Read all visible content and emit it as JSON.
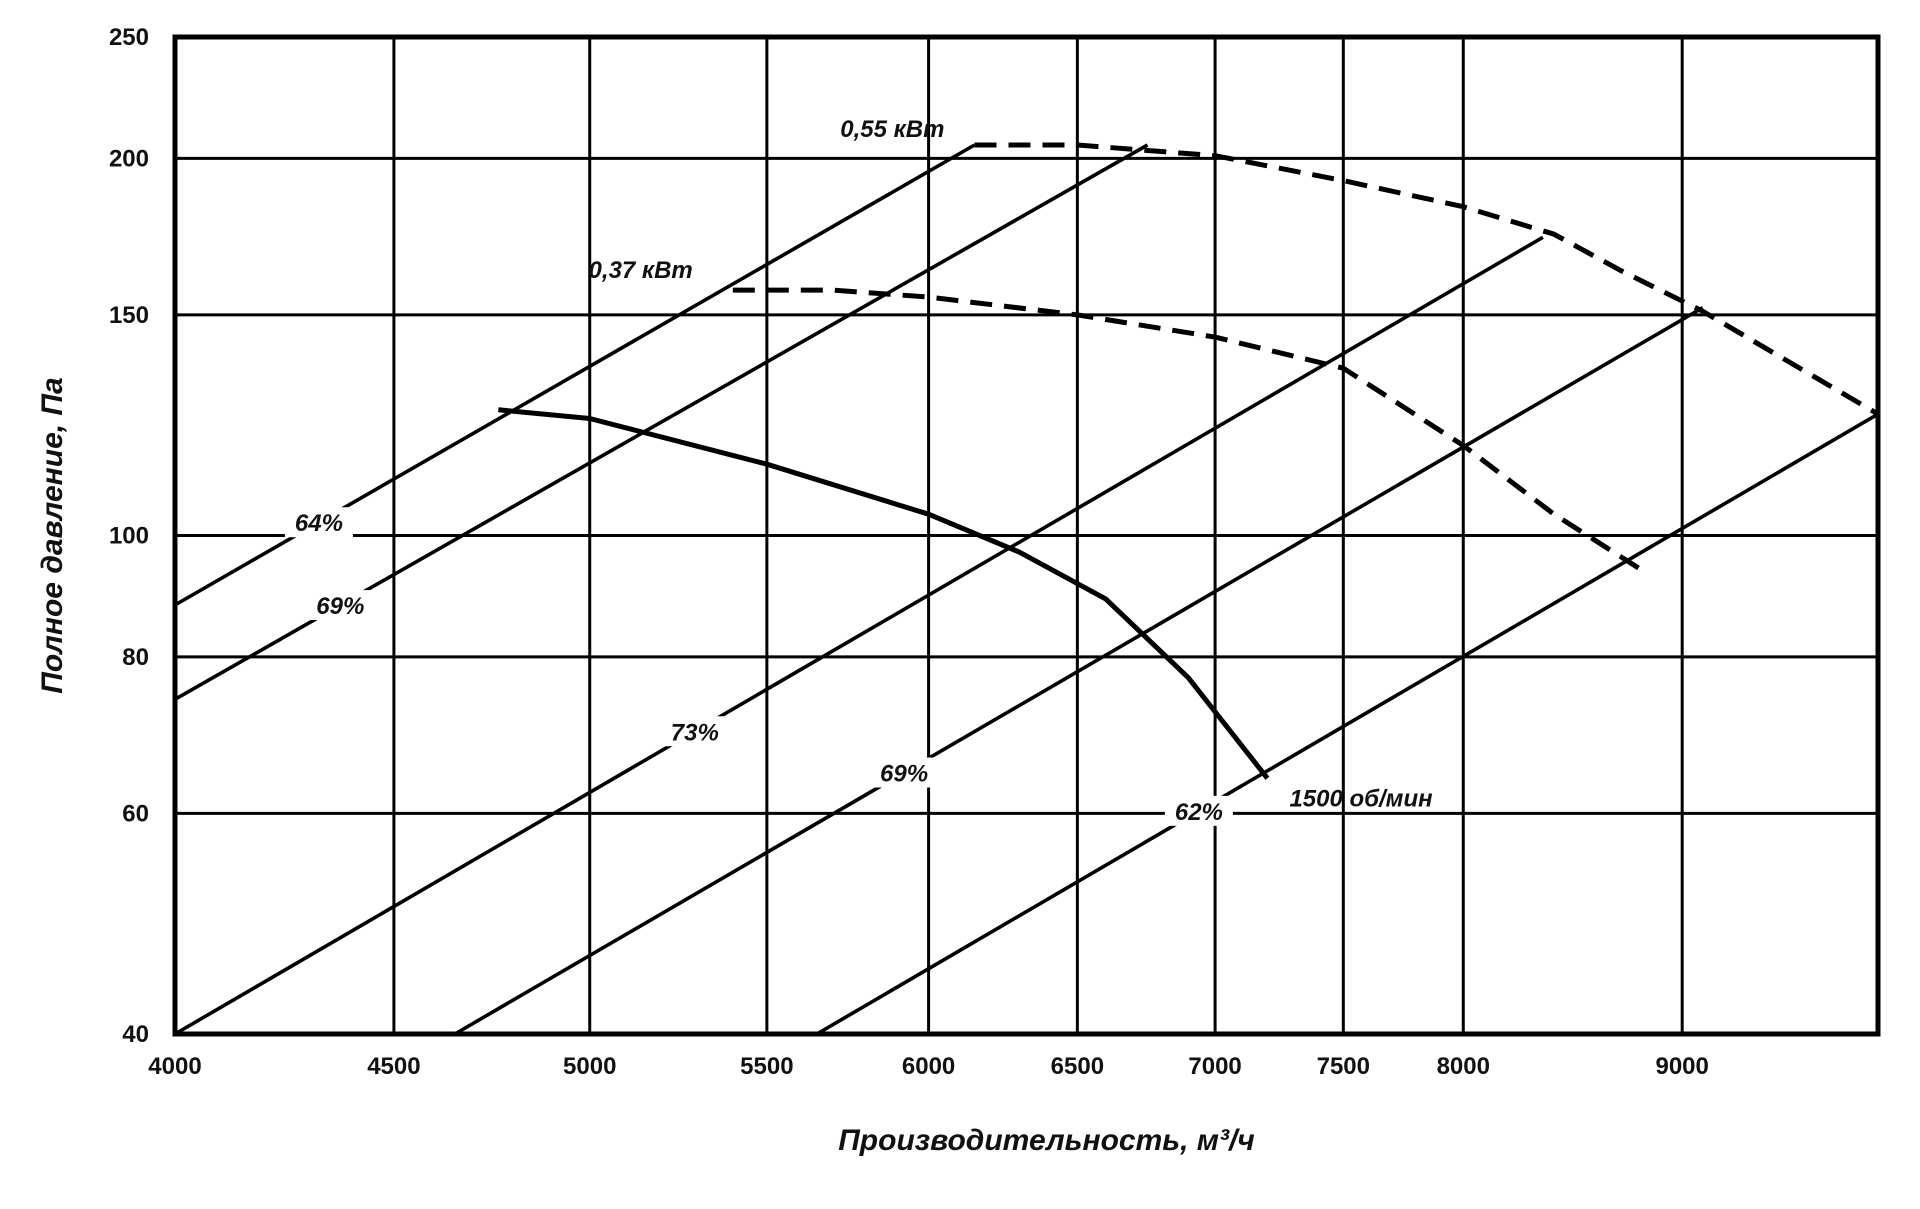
{
  "chart_data": {
    "type": "line",
    "title": "",
    "xlabel": "Производительность, м³/ч",
    "ylabel": "Полное давление, Па",
    "x_scale": "log",
    "y_scale": "log",
    "xlim": [
      4000,
      10000
    ],
    "ylim": [
      40,
      250
    ],
    "grid": true,
    "x_ticks": [
      {
        "value": 4000,
        "label": "4000"
      },
      {
        "value": 4500,
        "label": "4500"
      },
      {
        "value": 5000,
        "label": "5000"
      },
      {
        "value": 5500,
        "label": "5500"
      },
      {
        "value": 6000,
        "label": "6000"
      },
      {
        "value": 6500,
        "label": "6500"
      },
      {
        "value": 7000,
        "label": "7000"
      },
      {
        "value": 7500,
        "label": "7500"
      },
      {
        "value": 8000,
        "label": "8000"
      },
      {
        "value": 9000,
        "label": "9000"
      }
    ],
    "y_ticks": [
      {
        "value": 40,
        "label": "40"
      },
      {
        "value": 60,
        "label": "60"
      },
      {
        "value": 80,
        "label": "80"
      },
      {
        "value": 100,
        "label": "100"
      },
      {
        "value": 150,
        "label": "150"
      },
      {
        "value": 200,
        "label": "200"
      },
      {
        "value": 250,
        "label": "250"
      }
    ],
    "series": [
      {
        "name": "1500 об/мин",
        "style": "solid",
        "points": [
          [
            4760,
            126
          ],
          [
            5000,
            124
          ],
          [
            5500,
            114
          ],
          [
            6000,
            104
          ],
          [
            6300,
            97
          ],
          [
            6600,
            89
          ],
          [
            6900,
            77
          ],
          [
            7200,
            64
          ]
        ]
      },
      {
        "name": "0,37 кВт",
        "style": "dashed",
        "points": [
          [
            5400,
            157
          ],
          [
            5700,
            157
          ],
          [
            6000,
            155
          ],
          [
            6500,
            150
          ],
          [
            7000,
            144
          ],
          [
            7500,
            136
          ],
          [
            8000,
            118
          ],
          [
            8400,
            104
          ],
          [
            8800,
            94
          ]
        ]
      },
      {
        "name": "0,55 кВт",
        "style": "dashed",
        "points": [
          [
            6150,
            205
          ],
          [
            6500,
            205
          ],
          [
            7000,
            201
          ],
          [
            7500,
            192
          ],
          [
            8000,
            183
          ],
          [
            8400,
            174
          ],
          [
            8700,
            163
          ],
          [
            9100,
            151
          ],
          [
            10000,
            125
          ]
        ]
      }
    ],
    "efficiency_lines": [
      {
        "label": "64%",
        "points": [
          [
            4000,
            88
          ],
          [
            6150,
            205
          ]
        ]
      },
      {
        "label": "69%",
        "points": [
          [
            4000,
            74
          ],
          [
            6750,
            205
          ]
        ]
      },
      {
        "label": "73%",
        "points": [
          [
            4000,
            40
          ],
          [
            8350,
            173
          ]
        ]
      },
      {
        "label": "69%",
        "points": [
          [
            4650,
            40
          ],
          [
            9100,
            152
          ]
        ]
      },
      {
        "label": "62%",
        "points": [
          [
            5650,
            40
          ],
          [
            10000,
            125
          ]
        ]
      }
    ]
  }
}
